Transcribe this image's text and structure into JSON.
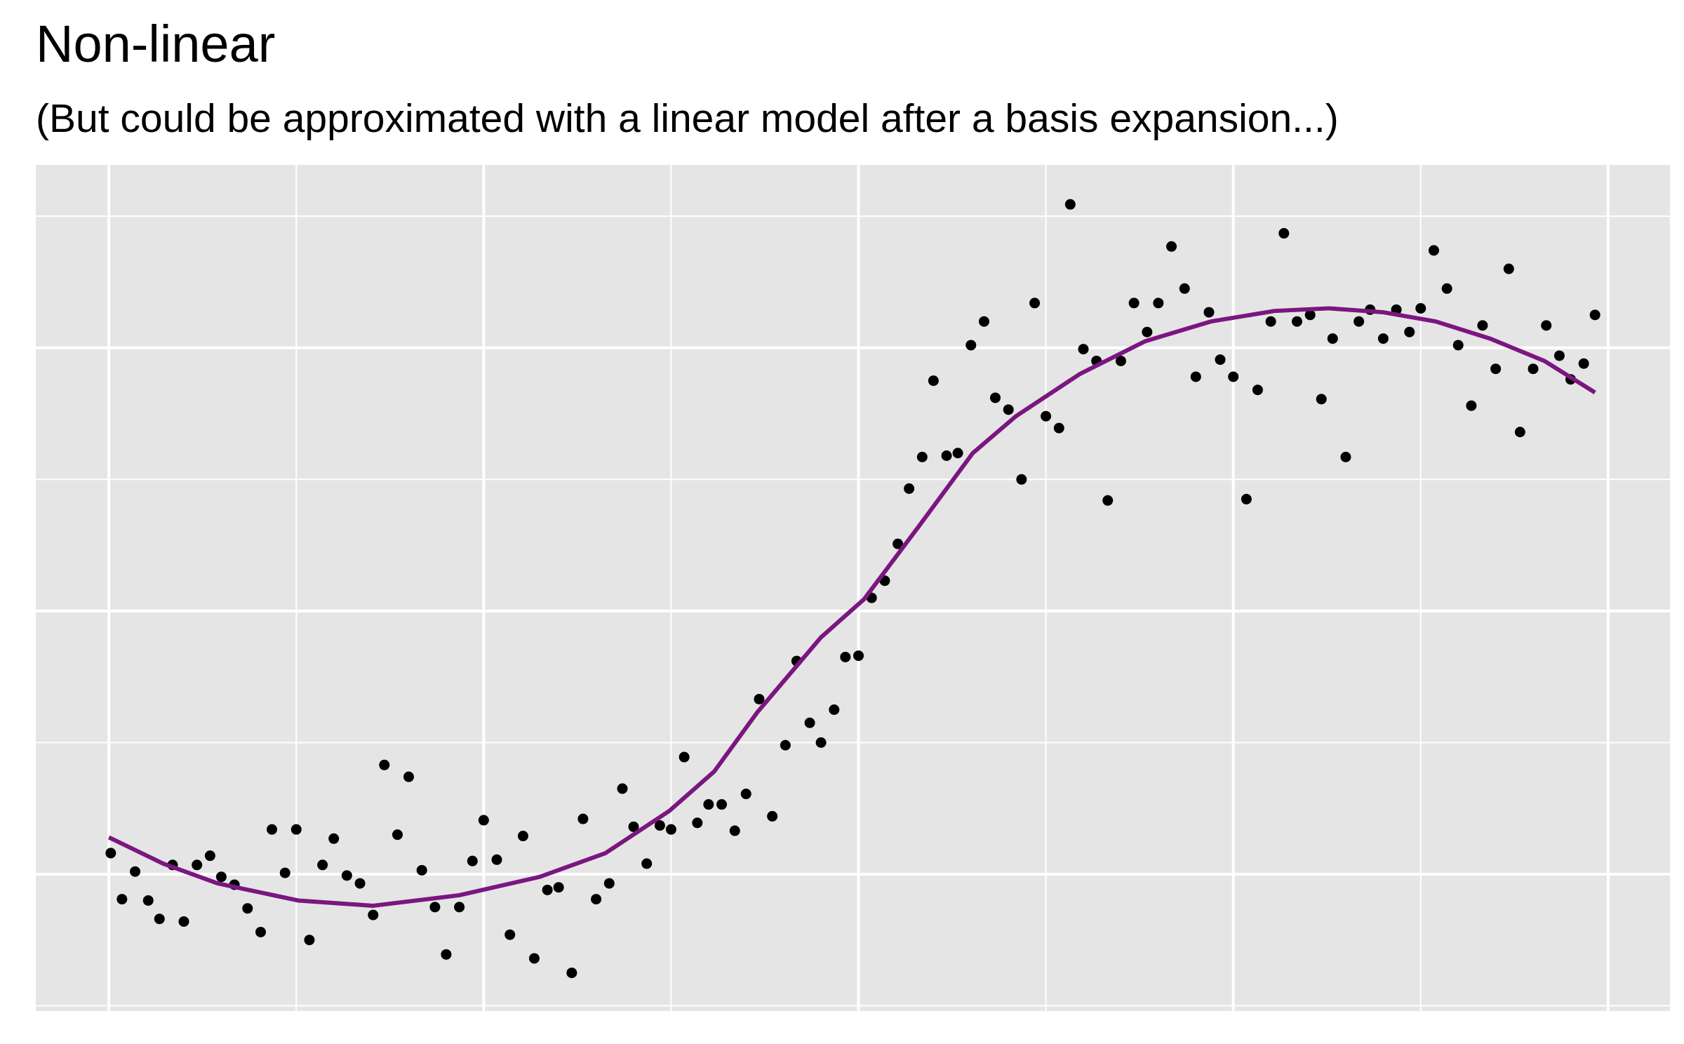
{
  "chart_data": {
    "type": "scatter",
    "title": "Non-linear",
    "subtitle": "(But could be approximated with a linear model after a basis expansion...)",
    "x": [
      0.01,
      0.07,
      0.14,
      0.21,
      0.27,
      0.34,
      0.4,
      0.47,
      0.54,
      0.6,
      0.67,
      0.74,
      0.81,
      0.87,
      0.94,
      1.0,
      1.07,
      1.14,
      1.2,
      1.27,
      1.34,
      1.41,
      1.47,
      1.54,
      1.6,
      1.67,
      1.74,
      1.8,
      1.87,
      1.94,
      2.0,
      2.07,
      2.14,
      2.21,
      2.27,
      2.34,
      2.4,
      2.47,
      2.53,
      2.6,
      2.67,
      2.74,
      2.8,
      2.87,
      2.94,
      3.0,
      3.07,
      3.14,
      3.2,
      3.27,
      3.34,
      3.4,
      3.47,
      3.54,
      3.61,
      3.67,
      3.74,
      3.8,
      3.87,
      3.93,
      4.0,
      4.07,
      4.14,
      4.21,
      4.27,
      4.34,
      4.4,
      4.47,
      4.53,
      4.6,
      4.67,
      4.73,
      4.8,
      4.87,
      4.94,
      5.0,
      5.07,
      5.13,
      5.2,
      5.27,
      5.33,
      5.4,
      5.47,
      5.54,
      5.6,
      5.67,
      5.74,
      5.8,
      5.87,
      5.93,
      6.0,
      6.07,
      6.13,
      6.2,
      6.27,
      6.34,
      6.41,
      6.47,
      6.53,
      6.6,
      6.67,
      6.73,
      6.8,
      6.87,
      6.94,
      7.0,
      7.07,
      7.14,
      7.2,
      7.27,
      7.33,
      7.4,
      7.47,
      7.53,
      7.6,
      7.67,
      7.74,
      7.8,
      7.87,
      7.93
    ],
    "values": [
      1.16,
      0.81,
      1.02,
      0.8,
      0.66,
      1.07,
      0.64,
      1.07,
      1.14,
      0.98,
      0.92,
      0.74,
      0.56,
      1.34,
      1.01,
      1.34,
      0.5,
      1.07,
      1.27,
      0.99,
      0.93,
      0.69,
      1.83,
      1.3,
      1.74,
      1.03,
      0.75,
      0.39,
      0.75,
      1.1,
      1.41,
      1.11,
      0.54,
      1.29,
      0.36,
      0.88,
      0.9,
      0.25,
      1.42,
      0.81,
      0.93,
      1.65,
      1.36,
      1.08,
      1.37,
      1.34,
      1.89,
      1.39,
      1.53,
      1.53,
      1.33,
      1.61,
      2.33,
      1.44,
      1.98,
      2.62,
      2.15,
      2.0,
      2.25,
      2.65,
      2.66,
      3.1,
      3.23,
      3.51,
      3.93,
      4.17,
      4.75,
      4.18,
      4.2,
      5.02,
      5.2,
      4.62,
      4.53,
      4.0,
      5.34,
      4.48,
      4.39,
      6.09,
      4.99,
      4.9,
      3.84,
      4.9,
      5.34,
      5.12,
      5.34,
      5.77,
      5.45,
      4.78,
      5.27,
      4.91,
      4.78,
      3.85,
      4.68,
      5.2,
      5.87,
      5.2,
      5.25,
      4.61,
      5.07,
      4.17,
      5.2,
      5.29,
      5.07,
      5.29,
      5.12,
      5.3,
      5.74,
      5.45,
      5.02,
      4.56,
      5.17,
      4.84,
      5.6,
      4.36,
      4.84,
      5.17,
      4.94,
      4.76,
      4.88,
      5.25
    ],
    "color": "#000000",
    "line": {
      "x": [
        0,
        0.29,
        0.58,
        1.01,
        1.41,
        1.87,
        2.3,
        2.65,
        2.99,
        3.23,
        3.46,
        3.8,
        4.03,
        4.32,
        4.61,
        4.84,
        5.18,
        5.53,
        5.88,
        6.22,
        6.51,
        6.8,
        7.08,
        7.37,
        7.66,
        7.93
      ],
      "values": [
        1.28,
        1.08,
        0.93,
        0.8,
        0.76,
        0.84,
        0.98,
        1.16,
        1.48,
        1.78,
        2.23,
        2.8,
        3.09,
        3.64,
        4.2,
        4.48,
        4.8,
        5.05,
        5.2,
        5.28,
        5.3,
        5.27,
        5.2,
        5.07,
        4.9,
        4.66
      ],
      "color": "#7b1680"
    },
    "xlim": [
      -0.39,
      8.33
    ],
    "ylim": [
      -0.04,
      6.39
    ],
    "xticks": [
      0,
      1,
      2,
      3,
      4,
      5,
      6,
      7,
      8
    ],
    "yticks": [
      0,
      1,
      2,
      3,
      4,
      5,
      6
    ],
    "grid": true
  }
}
